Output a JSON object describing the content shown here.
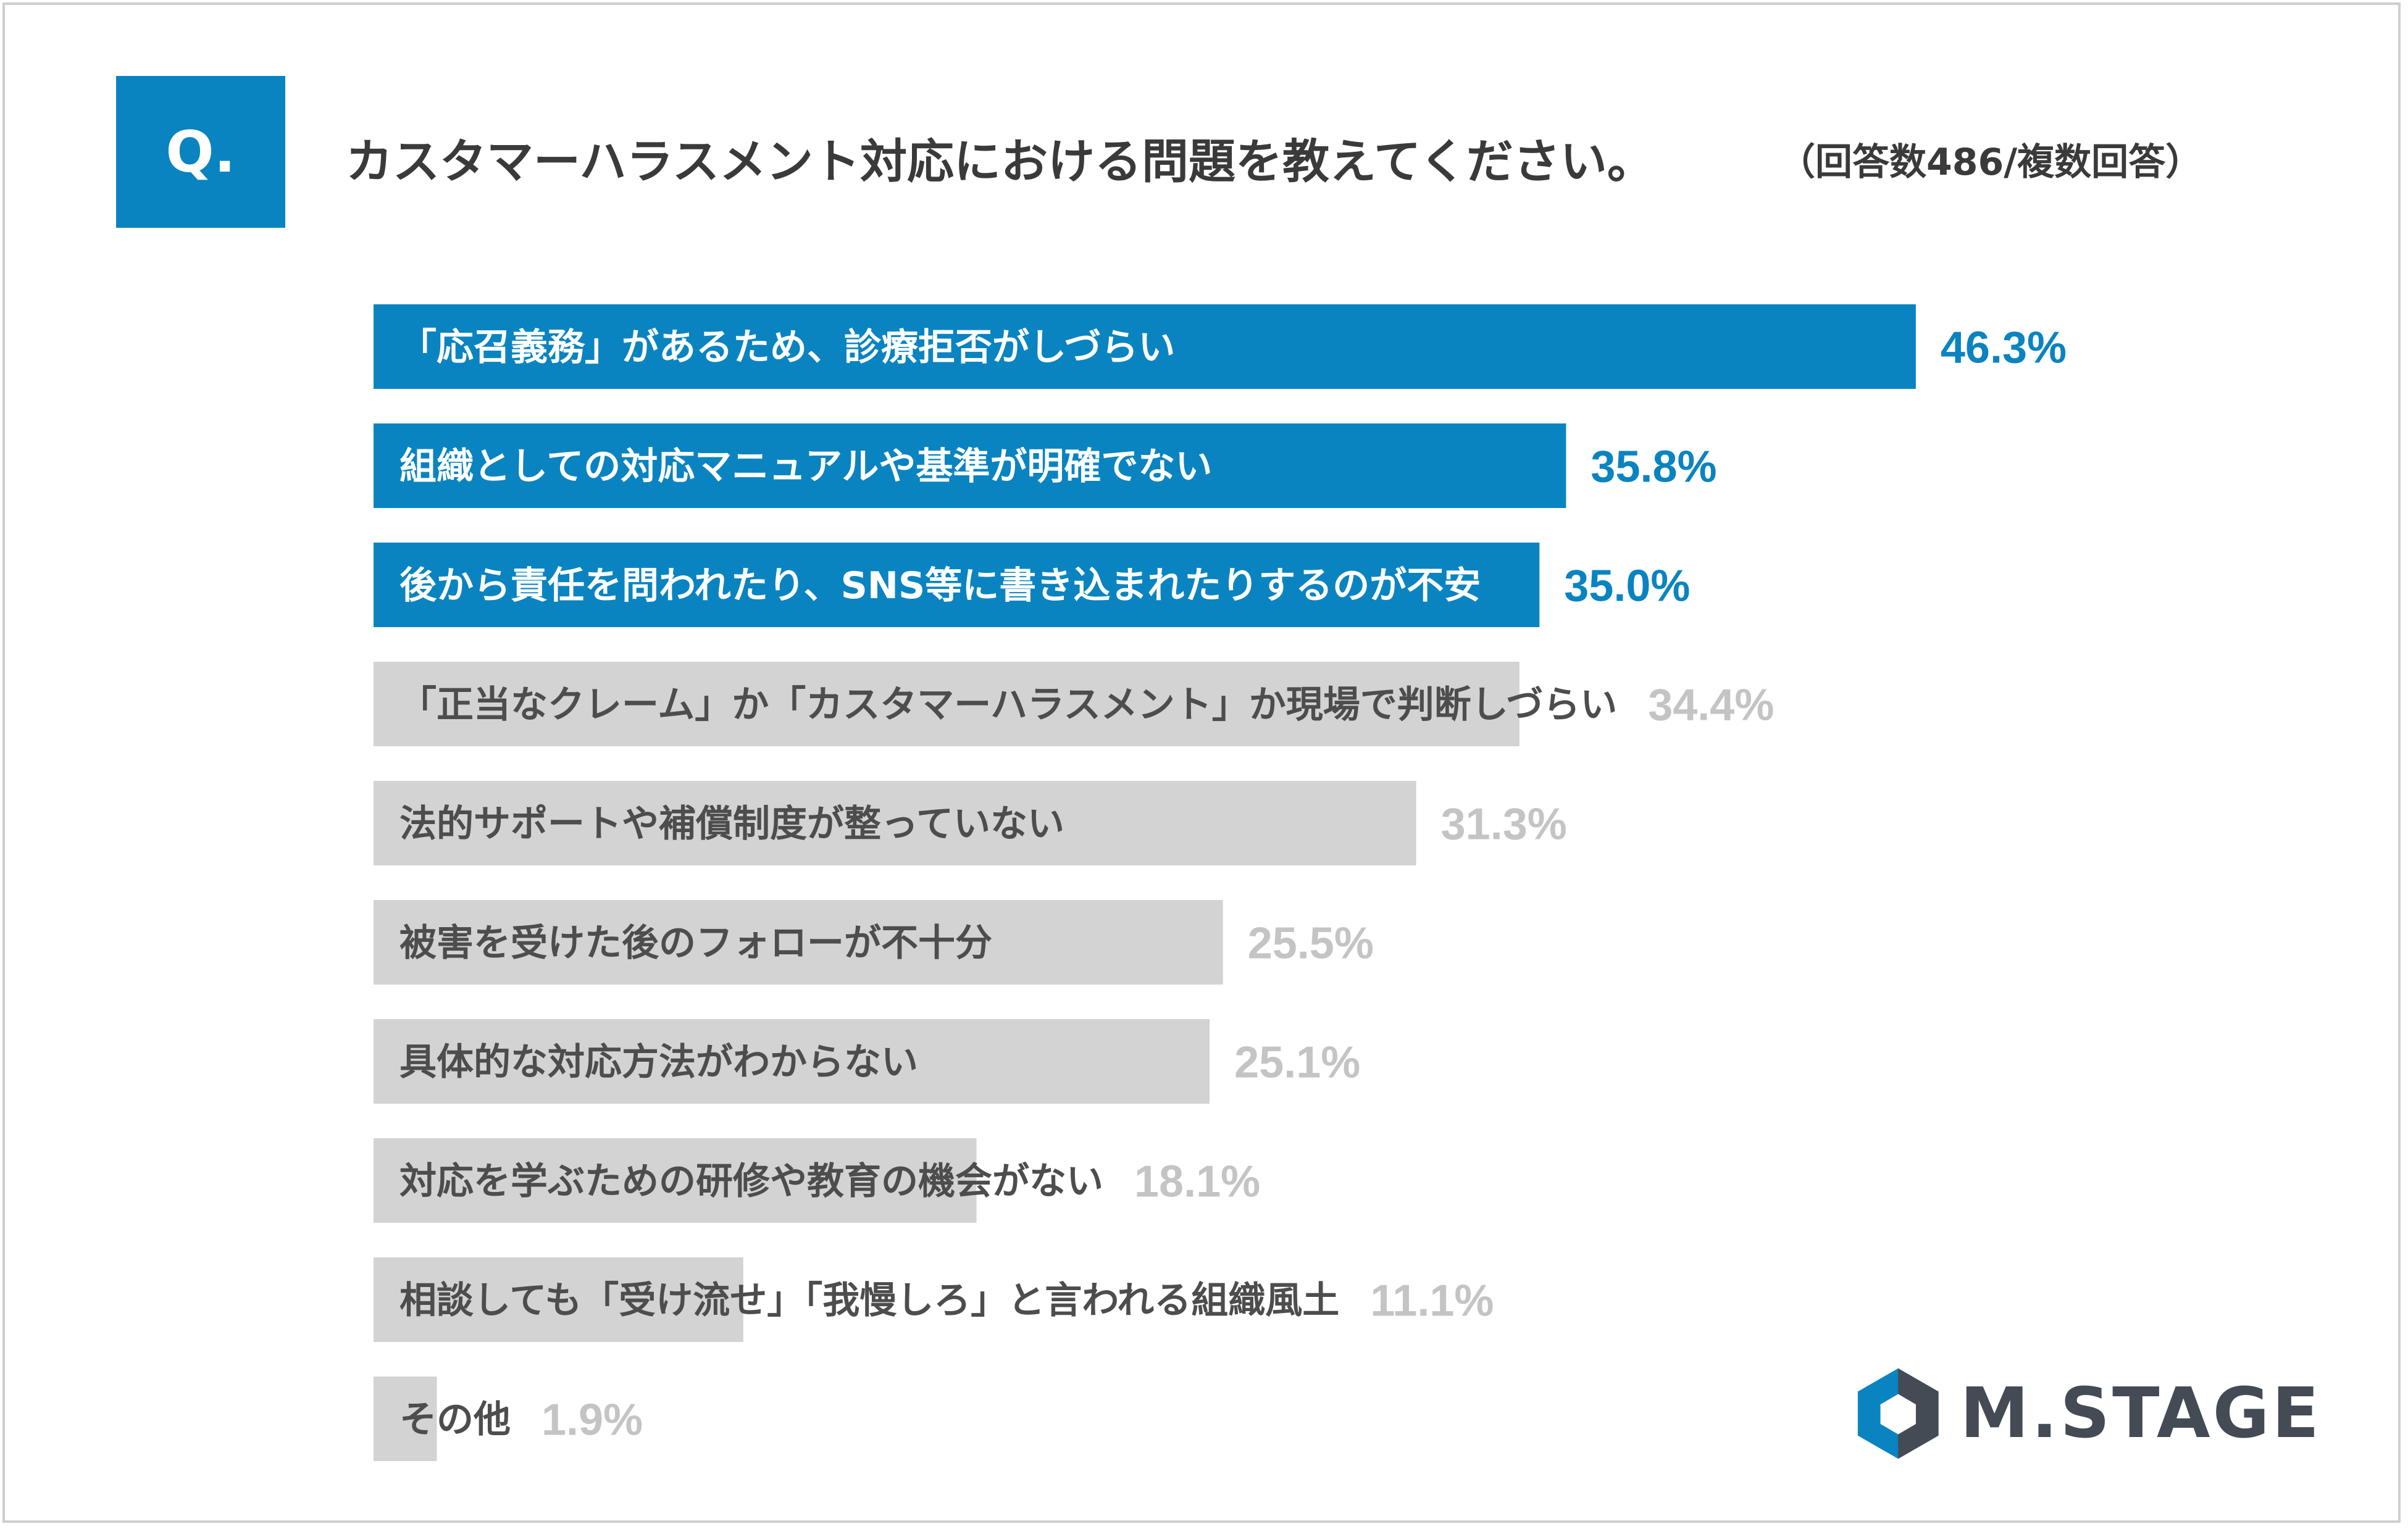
{
  "header": {
    "badge": "Q.",
    "question": "カスタマーハラスメント対応における問題を教えてください。",
    "note": "（回答数486/複数回答）"
  },
  "logo": {
    "text": "M.STAGE",
    "icon": "m-stage-hexagon-icon"
  },
  "colors": {
    "accent": "#0a84c0",
    "bar_gray": "#d3d3d3",
    "gray_value": "#c4c4c4",
    "gray_label": "#4d4d4d",
    "highlight_label": "#ffffff"
  },
  "chart_data": {
    "type": "bar",
    "orientation": "horizontal",
    "title": "カスタマーハラスメント対応における問題を教えてください。",
    "unit": "%",
    "xlim": [
      0,
      100
    ],
    "categories": [
      "「応召義務」があるため、診療拒否がしづらい",
      "組織としての対応マニュアルや基準が明確でない",
      "後から責任を問われたり、SNS等に書き込まれたりするのが不安",
      "「正当なクレーム」か「カスタマーハラスメント」か現場で判断しづらい",
      "法的サポートや補償制度が整っていない",
      "被害を受けた後のフォローが不十分",
      "具体的な対応方法がわからない",
      "対応を学ぶための研修や教育の機会がない",
      "相談しても「受け流せ」「我慢しろ」と言われる組織風土",
      "その他"
    ],
    "values": [
      46.3,
      35.8,
      35.0,
      34.4,
      31.3,
      25.5,
      25.1,
      18.1,
      11.1,
      1.9
    ],
    "value_labels": [
      "46.3%",
      "35.8%",
      "35.0%",
      "34.4%",
      "31.3%",
      "25.5%",
      "25.1%",
      "18.1%",
      "11.1%",
      "1.9%"
    ],
    "highlighted": [
      true,
      true,
      true,
      false,
      false,
      false,
      false,
      false,
      false,
      false
    ]
  }
}
